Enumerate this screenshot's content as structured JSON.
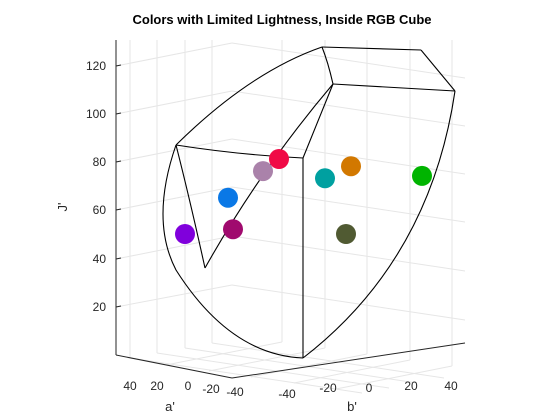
{
  "chart_data": {
    "type": "scatter",
    "projection": "3d",
    "title": "Colors with Limited Lightness, Inside RGB Cube",
    "axes": {
      "a": {
        "label": "a'",
        "ticks": [
          "40",
          "20",
          "0",
          "-20",
          "-40"
        ]
      },
      "b": {
        "label": "b'",
        "ticks": [
          "-40",
          "-20",
          "0",
          "20",
          "40"
        ]
      },
      "J": {
        "label": "J'",
        "ticks": [
          "20",
          "40",
          "60",
          "80",
          "100",
          "120"
        ],
        "ylim": [
          0,
          130
        ]
      }
    },
    "grid": true,
    "points": [
      {
        "name": "violet",
        "J": 50,
        "color": "#8000dc"
      },
      {
        "name": "plum",
        "J": 52,
        "color": "#a00a6e"
      },
      {
        "name": "azure",
        "J": 65,
        "color": "#0a78e6"
      },
      {
        "name": "mauve",
        "J": 76,
        "color": "#aa82aa"
      },
      {
        "name": "crimson",
        "J": 81,
        "color": "#f00a46"
      },
      {
        "name": "teal",
        "J": 73,
        "color": "#00a0a0"
      },
      {
        "name": "ochre",
        "J": 78,
        "color": "#d27800"
      },
      {
        "name": "olive",
        "J": 50,
        "color": "#505a32"
      },
      {
        "name": "green",
        "J": 74,
        "color": "#00b400"
      }
    ]
  }
}
